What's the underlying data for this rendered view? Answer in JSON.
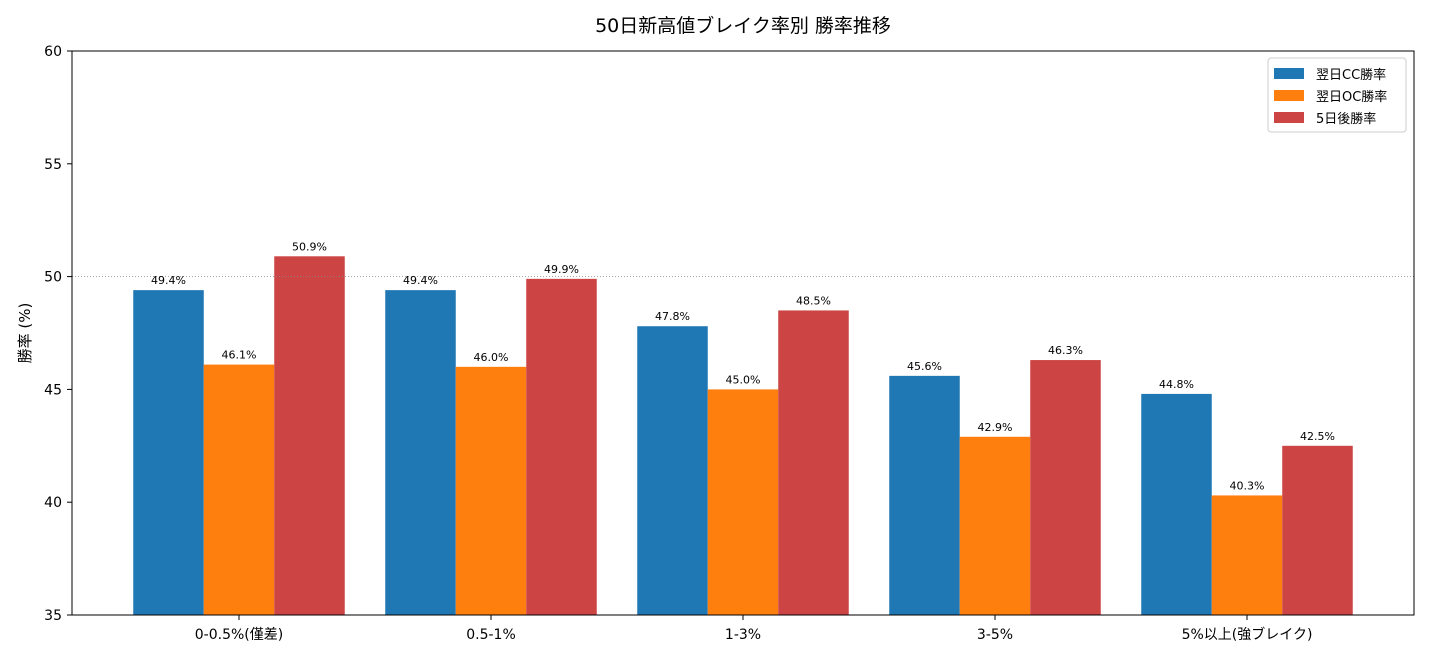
{
  "chart_data": {
    "type": "bar",
    "title": "50日新高値ブレイク率別 勝率推移",
    "xlabel": "",
    "ylabel": "勝率 (%)",
    "categories": [
      "0-0.5%(僅差)",
      "0.5-1%",
      "1-3%",
      "3-5%",
      "5%以上(強ブレイク)"
    ],
    "series": [
      {
        "name": "翌日CC勝率",
        "color": "#1f77b4",
        "values": [
          49.4,
          49.4,
          47.8,
          45.6,
          44.8
        ],
        "labels": [
          "49.4%",
          "49.4%",
          "47.8%",
          "45.6%",
          "44.8%"
        ]
      },
      {
        "name": "翌日OC勝率",
        "color": "#ff7f0e",
        "values": [
          46.1,
          46.0,
          45.0,
          42.9,
          40.3
        ],
        "labels": [
          "46.1%",
          "46.0%",
          "45.0%",
          "42.9%",
          "40.3%"
        ]
      },
      {
        "name": "5日後勝率",
        "color": "#cc4444",
        "values": [
          50.9,
          49.9,
          48.5,
          46.3,
          42.5
        ],
        "labels": [
          "50.9%",
          "49.9%",
          "48.5%",
          "46.3%",
          "42.5%"
        ]
      }
    ],
    "ylim": [
      35,
      60
    ],
    "yticks": [
      35,
      40,
      45,
      50,
      55,
      60
    ],
    "ytick_labels": [
      "35",
      "40",
      "45",
      "50",
      "55",
      "60"
    ],
    "reference_line": {
      "y": 50,
      "style": "dotted",
      "color": "#888888"
    },
    "grid": false,
    "legend_position": "top-right"
  }
}
